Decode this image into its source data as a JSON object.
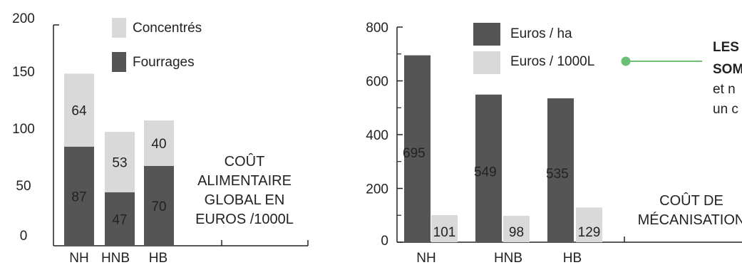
{
  "colors": {
    "dark": "#555555",
    "light": "#d9d9d9",
    "ink": "#222222",
    "green": "#6cbf73"
  },
  "chart_data": [
    {
      "type": "bar",
      "stacked": true,
      "categories": [
        "NH",
        "HNB",
        "HB"
      ],
      "ylim": [
        0,
        200
      ],
      "yticks": [
        "0",
        "50",
        "100",
        "150",
        "200"
      ],
      "series": [
        {
          "name": "Fourrages",
          "values": [
            87,
            47,
            70
          ],
          "color": "#555555"
        },
        {
          "name": "Concentrés",
          "values": [
            64,
            53,
            40
          ],
          "color": "#d9d9d9"
        }
      ],
      "title_lines": [
        "COÛT",
        "ALIMENTAIRE",
        "GLOBAL EN",
        "EUROS /1000L"
      ],
      "legend": [
        "Concentrés",
        "Fourrages"
      ]
    },
    {
      "type": "bar",
      "stacked": false,
      "categories": [
        "NH",
        "HNB",
        "HB"
      ],
      "ylim": [
        0,
        800
      ],
      "yticks": [
        "0",
        "200",
        "400",
        "600",
        "800"
      ],
      "series": [
        {
          "name": "Euros / ha",
          "values": [
            695,
            549,
            535
          ],
          "color": "#555555"
        },
        {
          "name": "Euros / 1000L",
          "values": [
            101,
            98,
            129
          ],
          "color": "#d9d9d9"
        }
      ],
      "title_lines": [
        "COÛT DE",
        "MÉCANISATION"
      ],
      "legend": [
        "Euros / ha",
        "Euros / 1000L"
      ]
    }
  ],
  "callout": {
    "line1": "LES",
    "line2": "SOM",
    "line3": "et n",
    "line4": "un c"
  }
}
